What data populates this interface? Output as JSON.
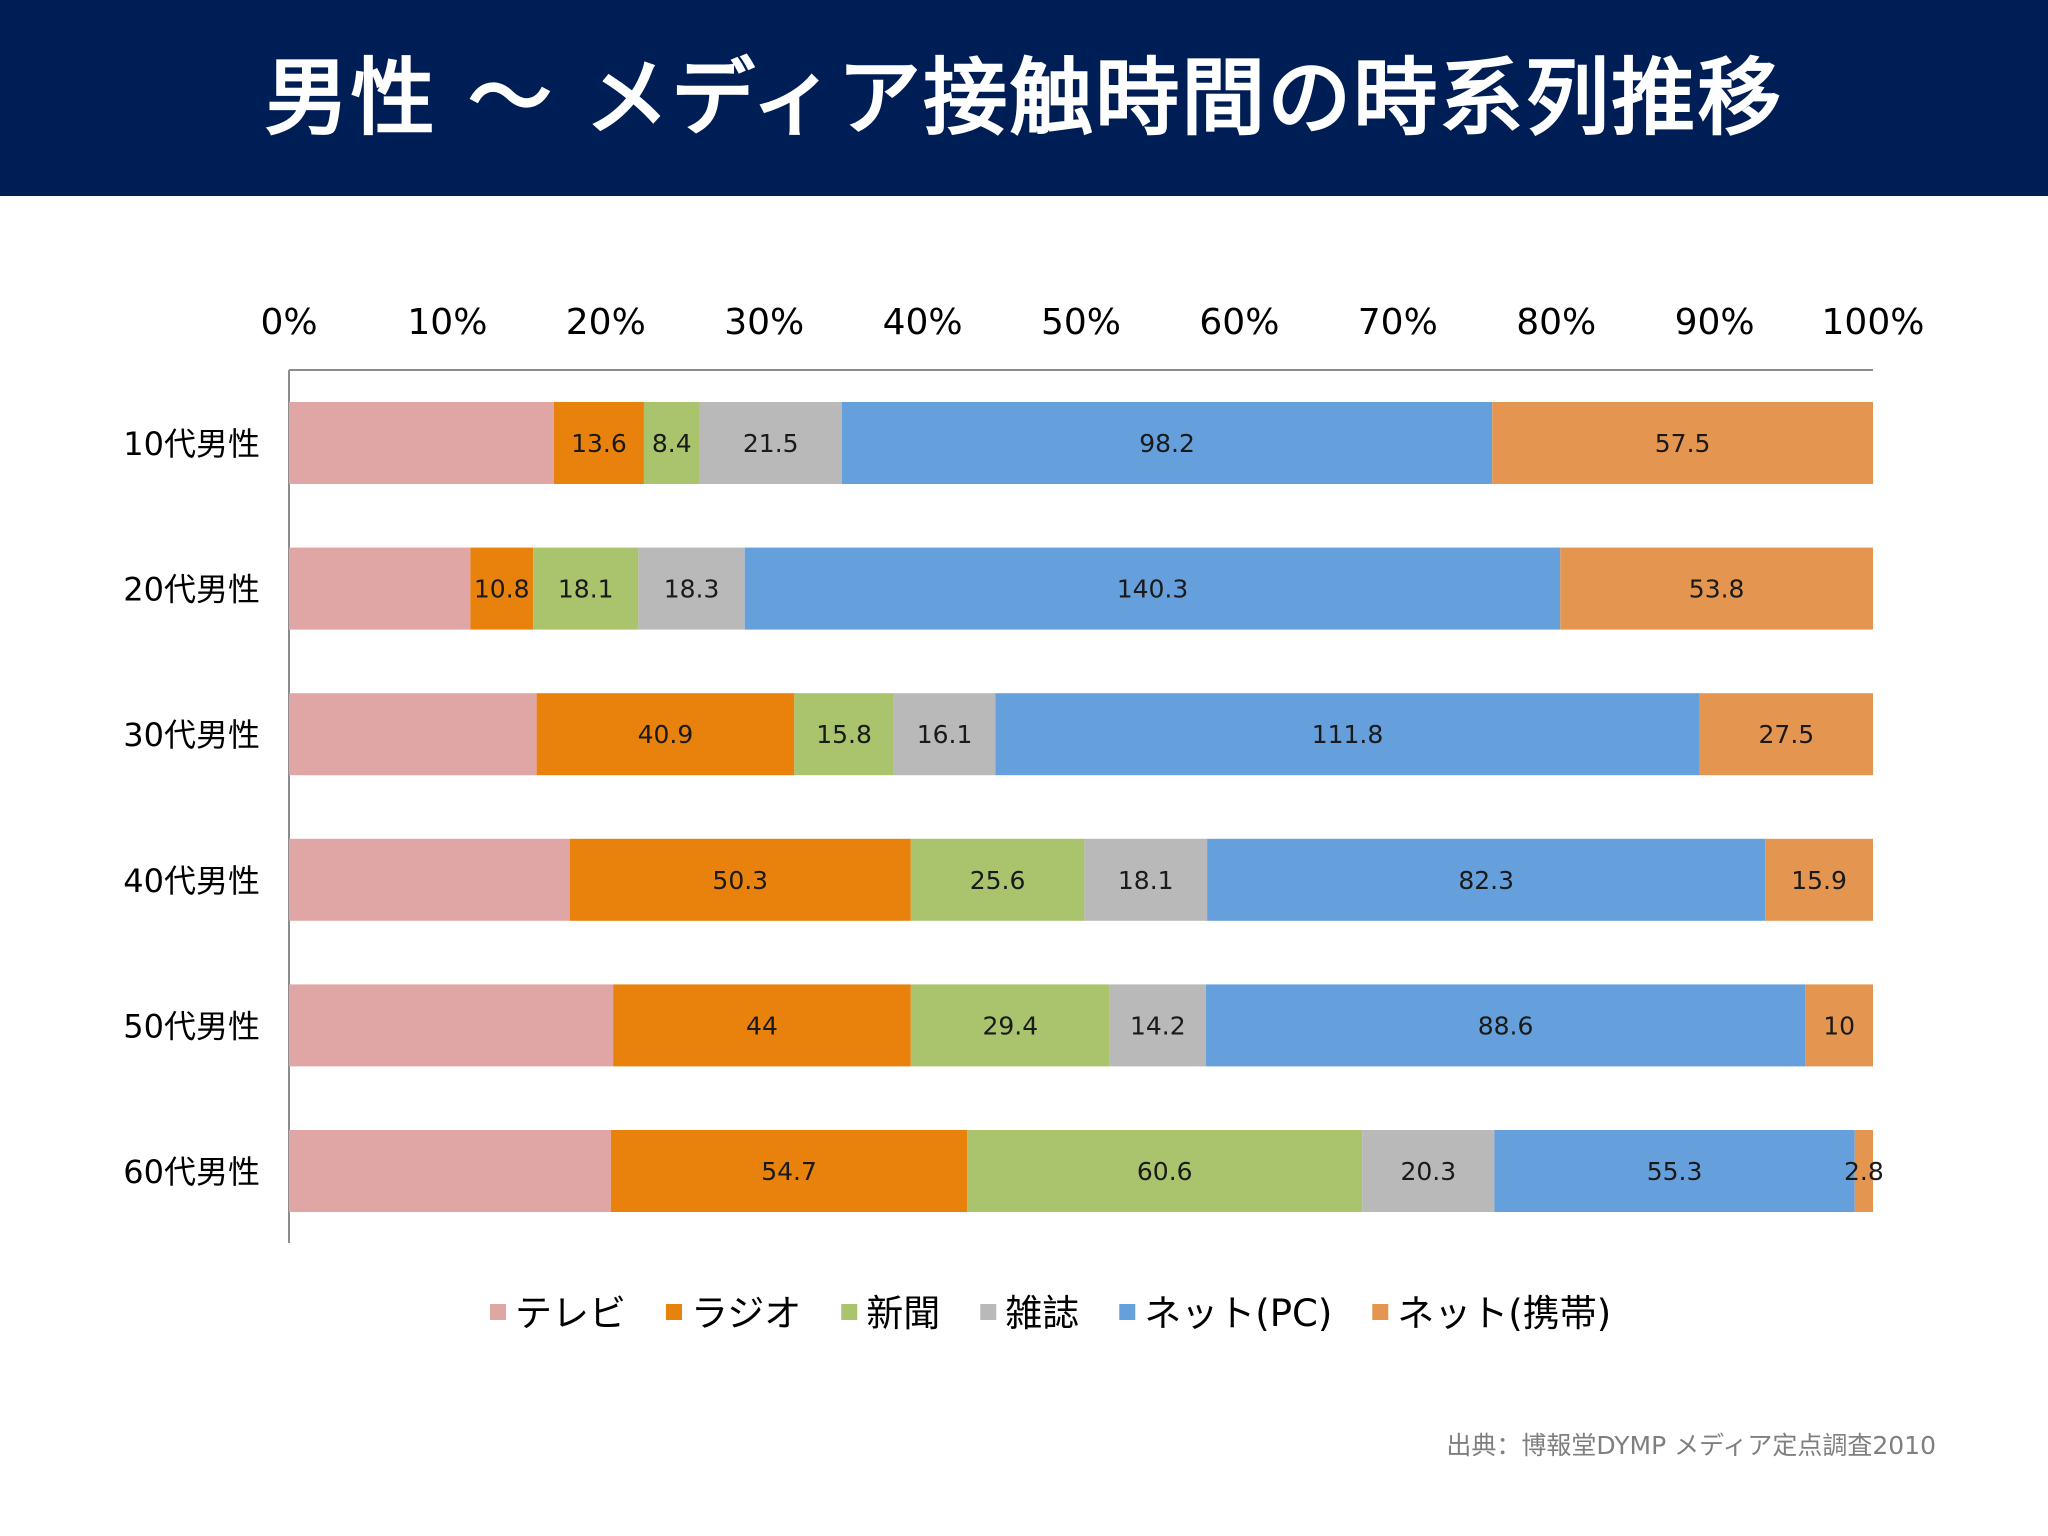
{
  "header": {
    "title": "男性 ～ メディア接触時間の時系列推移"
  },
  "source": "出典：博報堂DYMP メディア定点調査2010",
  "colors": {
    "header_bg": "#001e56",
    "テレビ": "#e0a6a6",
    "ラジオ": "#e8820c",
    "新聞": "#a9c46d",
    "雑誌": "#b9b9b9",
    "ネット(PC)": "#65a0dc",
    "ネット(携帯)": "#e49650"
  },
  "chart_data": {
    "type": "bar",
    "orientation": "horizontal",
    "stacked": "percent",
    "title": "",
    "xlabel": "",
    "ylabel": "",
    "xlim": [
      0,
      100
    ],
    "x_ticks": [
      "0%",
      "10%",
      "20%",
      "30%",
      "40%",
      "50%",
      "60%",
      "70%",
      "80%",
      "90%",
      "100%"
    ],
    "x_axis_position": "top",
    "legend_position": "bottom",
    "grid": false,
    "categories": [
      "10代男性",
      "20代男性",
      "30代男性",
      "40代男性",
      "50代男性",
      "60代男性"
    ],
    "series": [
      {
        "name": "テレビ",
        "values": [
          40.0,
          31.2,
          39.3,
          41.4,
          47.9,
          49.4
        ],
        "labels": [
          "",
          "",
          "",
          "",
          "",
          ""
        ]
      },
      {
        "name": "ラジオ",
        "values": [
          13.6,
          10.8,
          40.9,
          50.3,
          44,
          54.7
        ],
        "labels": [
          "13.6",
          "10.8",
          "40.9",
          "50.3",
          "44",
          "54.7"
        ]
      },
      {
        "name": "新聞",
        "values": [
          8.4,
          18.1,
          15.8,
          25.6,
          29.4,
          60.6
        ],
        "labels": [
          "8.4",
          "18.1",
          "15.8",
          "25.6",
          "29.4",
          "60.6"
        ]
      },
      {
        "name": "雑誌",
        "values": [
          21.5,
          18.3,
          16.1,
          18.1,
          14.2,
          20.3
        ],
        "labels": [
          "21.5",
          "18.3",
          "16.1",
          "18.1",
          "14.2",
          "20.3"
        ]
      },
      {
        "name": "ネット(PC)",
        "values": [
          98.2,
          140.3,
          111.8,
          82.3,
          88.6,
          55.3
        ],
        "labels": [
          "98.2",
          "140.3",
          "111.8",
          "82.3",
          "88.6",
          "55.3"
        ]
      },
      {
        "name": "ネット(携帯)",
        "values": [
          57.5,
          53.8,
          27.5,
          15.9,
          10,
          2.8
        ],
        "labels": [
          "57.5",
          "53.8",
          "27.5",
          "15.9",
          "10",
          "2.8"
        ]
      }
    ]
  }
}
